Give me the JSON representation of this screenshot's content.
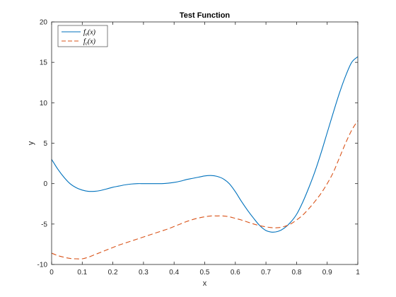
{
  "chart_data": {
    "type": "line",
    "title": "Test Function",
    "xlabel": "x",
    "ylabel": "y",
    "xlim": [
      0,
      1
    ],
    "ylim": [
      -10,
      20
    ],
    "xticks": [
      0,
      0.1,
      0.2,
      0.3,
      0.4,
      0.5,
      0.6,
      0.7,
      0.8,
      0.9,
      1
    ],
    "yticks": [
      -10,
      -5,
      0,
      5,
      10,
      15,
      20
    ],
    "xtick_labels": [
      "0",
      "0.1",
      "0.2",
      "0.3",
      "0.4",
      "0.5",
      "0.6",
      "0.7",
      "0.8",
      "0.9",
      "1"
    ],
    "ytick_labels": [
      "-10",
      "-5",
      "0",
      "5",
      "10",
      "15",
      "20"
    ],
    "grid": false,
    "legend_position": "top-left",
    "x": [
      0,
      0.02,
      0.04,
      0.06,
      0.08,
      0.1,
      0.12,
      0.14,
      0.16,
      0.18,
      0.2,
      0.22,
      0.24,
      0.26,
      0.28,
      0.3,
      0.32,
      0.34,
      0.36,
      0.38,
      0.4,
      0.42,
      0.44,
      0.46,
      0.48,
      0.5,
      0.52,
      0.54,
      0.56,
      0.58,
      0.6,
      0.62,
      0.64,
      0.66,
      0.68,
      0.7,
      0.72,
      0.74,
      0.76,
      0.78,
      0.8,
      0.82,
      0.84,
      0.86,
      0.88,
      0.9,
      0.92,
      0.94,
      0.96,
      0.98,
      1.0
    ],
    "series": [
      {
        "name": "f_e(x)",
        "color": "#0072BD",
        "dash": "solid",
        "values": [
          3.0,
          1.8,
          0.8,
          0.0,
          -0.5,
          -0.8,
          -0.95,
          -0.95,
          -0.85,
          -0.65,
          -0.45,
          -0.3,
          -0.15,
          -0.05,
          0.0,
          0.0,
          0.0,
          0.0,
          0.0,
          0.05,
          0.15,
          0.3,
          0.5,
          0.65,
          0.8,
          0.95,
          1.0,
          0.9,
          0.6,
          0.0,
          -1.0,
          -2.2,
          -3.3,
          -4.3,
          -5.2,
          -5.8,
          -6.0,
          -5.9,
          -5.5,
          -4.8,
          -3.8,
          -2.3,
          -0.5,
          1.5,
          3.8,
          6.3,
          8.8,
          11.2,
          13.3,
          15.0,
          15.7
        ]
      },
      {
        "name": "f_c(x)",
        "color": "#D95319",
        "dash": "dashed",
        "values": [
          -8.6,
          -8.9,
          -9.1,
          -9.25,
          -9.3,
          -9.3,
          -9.1,
          -8.8,
          -8.5,
          -8.2,
          -7.9,
          -7.6,
          -7.35,
          -7.1,
          -6.85,
          -6.6,
          -6.35,
          -6.1,
          -5.85,
          -5.6,
          -5.3,
          -5.0,
          -4.7,
          -4.45,
          -4.25,
          -4.1,
          -4.0,
          -4.0,
          -4.0,
          -4.1,
          -4.3,
          -4.5,
          -4.75,
          -5.0,
          -5.2,
          -5.35,
          -5.45,
          -5.45,
          -5.3,
          -5.0,
          -4.5,
          -3.9,
          -3.1,
          -2.2,
          -1.2,
          0.0,
          1.4,
          3.2,
          5.0,
          6.6,
          7.8
        ]
      }
    ]
  }
}
